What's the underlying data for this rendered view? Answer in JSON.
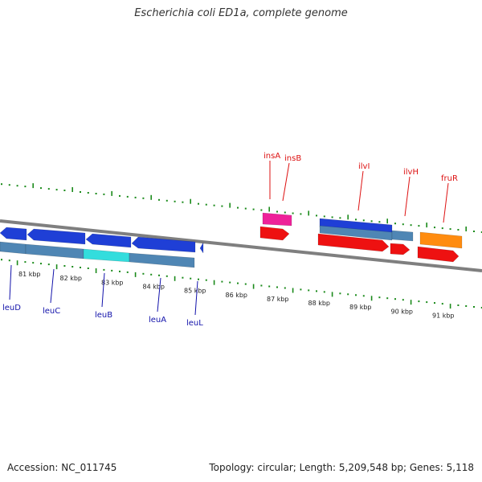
{
  "title": "Escherichia coli ED1a, complete genome",
  "accession": "Accession: NC_011745",
  "topology": "Topology: circular; Length: 5,209,548 bp; Genes: 5,118",
  "colors": {
    "backbone": "#7f7f7f",
    "tick": "#1a8a1a",
    "forward_label": "#dd1111",
    "reverse_label": "#1111aa",
    "gene_blue": "#1f3fd6",
    "gene_steel": "#4f86b4",
    "gene_cyan": "#33dddd",
    "gene_red": "#ee1111",
    "gene_pink": "#ee2299",
    "gene_orange": "#ff8c10"
  },
  "kbp_labels": [
    "81 kbp",
    "82 kbp",
    "83 kbp",
    "84 kbp",
    "85 kbp",
    "86 kbp",
    "87 kbp",
    "88 kbp",
    "89 kbp",
    "90 kbp",
    "91 kbp"
  ],
  "forward_gene_labels": [
    "insA",
    "insB",
    "ilvI",
    "ilvH",
    "fruR"
  ],
  "reverse_gene_labels": [
    "leuD",
    "leuC",
    "leuB",
    "leuA",
    "leuL"
  ]
}
